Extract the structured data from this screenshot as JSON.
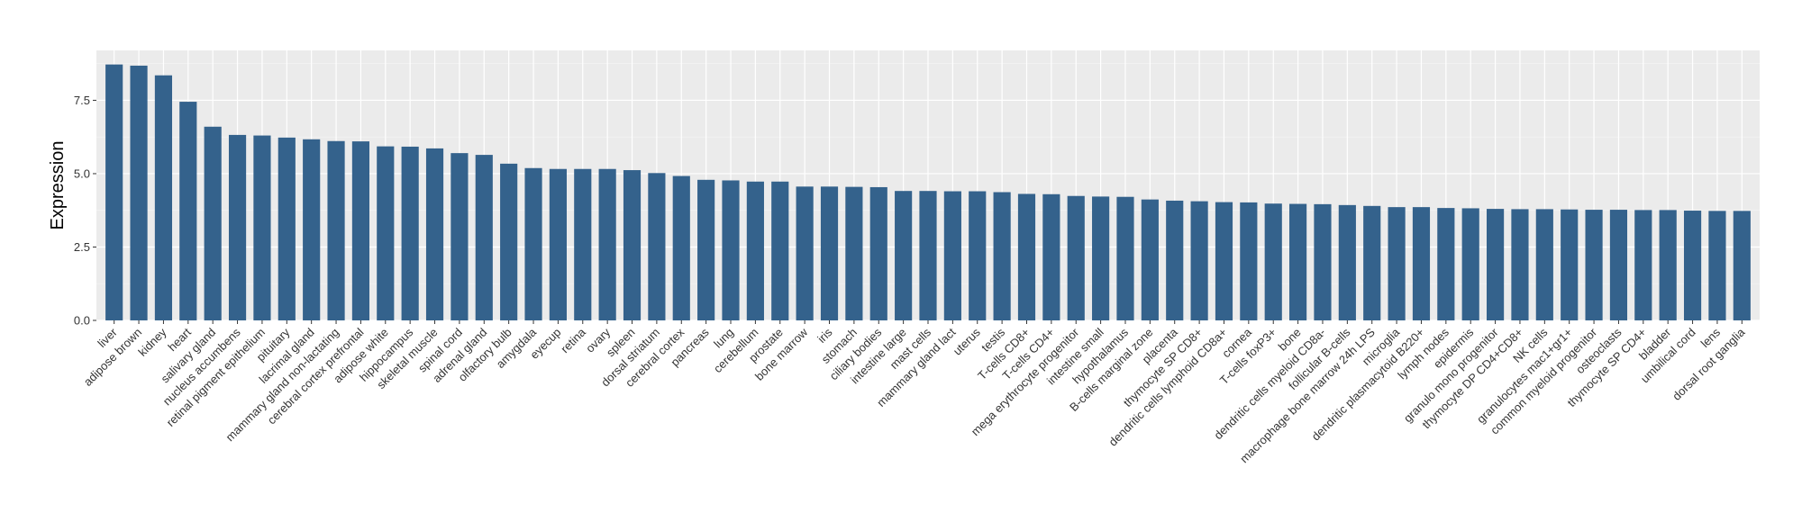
{
  "colors": {
    "panel": "#ebebeb",
    "grid_major": "#ffffff",
    "bar": "#34628c",
    "text": "#333333",
    "tick": "#333333"
  },
  "chart_data": {
    "type": "bar",
    "title": "",
    "xlabel": "",
    "ylabel": "Expression",
    "ylim": [
      0,
      9.2
    ],
    "yticks": [
      0.0,
      2.5,
      5.0,
      7.5
    ],
    "ytick_labels": [
      "0.0",
      "2.5",
      "5.0",
      "7.5"
    ],
    "grid": true,
    "legend": "none",
    "categories": [
      "liver",
      "adipose brown",
      "kidney",
      "heart",
      "salivary gland",
      "nucleus accumbens",
      "retinal pigment epithelium",
      "pituitary",
      "lacrimal gland",
      "mammary gland non-lactating",
      "cerebral cortex prefrontal",
      "adipose white",
      "hippocampus",
      "skeletal muscle",
      "spinal cord",
      "adrenal gland",
      "olfactory bulb",
      "amygdala",
      "eyecup",
      "retina",
      "ovary",
      "spleen",
      "dorsal striatum",
      "cerebral cortex",
      "pancreas",
      "lung",
      "cerebellum",
      "prostate",
      "bone marrow",
      "iris",
      "stomach",
      "ciliary bodies",
      "intestine large",
      "mast cells",
      "mammary gland  lact",
      "uterus",
      "testis",
      "T-cells CD8+",
      "T-cells CD4+",
      "mega erythrocyte progenitor",
      "intestine small",
      "hypothalamus",
      "B-cells marginal zone",
      "placenta",
      "thymocyte SP CD8+",
      "dendritic cells lymphoid CD8a+",
      "cornea",
      "T-cells foxP3+",
      "bone",
      "dendritic cells myeloid CD8a-",
      "follicular B-cells",
      "macrophage bone marrow 24h LPS",
      "microglia",
      "dendritic plasmacytoid B220+",
      "lymph nodes",
      "epidermis",
      "granulo mono progenitor",
      "thymocyte DP CD4+CD8+",
      "NK cells",
      "granulocytes mac1+gr1+",
      "common myeloid progenitor",
      "osteoclasts",
      "thymocyte SP CD4+",
      "bladder",
      "umbilical cord",
      "lens",
      "dorsal root ganglia"
    ],
    "values": [
      8.72,
      8.68,
      8.35,
      7.45,
      6.6,
      6.32,
      6.3,
      6.23,
      6.17,
      6.11,
      6.1,
      5.93,
      5.92,
      5.86,
      5.7,
      5.64,
      5.34,
      5.19,
      5.16,
      5.16,
      5.16,
      5.12,
      5.02,
      4.92,
      4.79,
      4.77,
      4.73,
      4.73,
      4.56,
      4.56,
      4.55,
      4.54,
      4.41,
      4.41,
      4.4,
      4.4,
      4.37,
      4.31,
      4.3,
      4.24,
      4.22,
      4.21,
      4.12,
      4.08,
      4.06,
      4.03,
      4.02,
      3.98,
      3.97,
      3.96,
      3.93,
      3.9,
      3.86,
      3.86,
      3.83,
      3.82,
      3.8,
      3.79,
      3.79,
      3.78,
      3.77,
      3.77,
      3.76,
      3.76,
      3.74,
      3.73,
      3.73
    ]
  }
}
